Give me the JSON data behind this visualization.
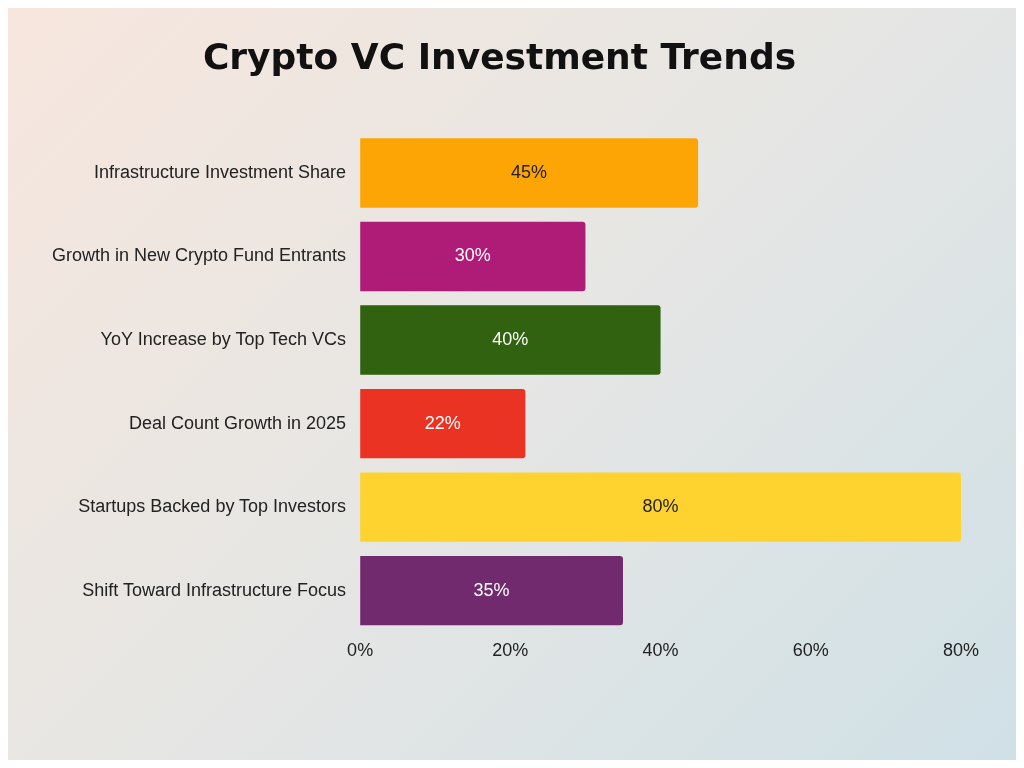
{
  "chart_data": {
    "type": "bar",
    "title": "Crypto VC Investment Trends",
    "orientation": "horizontal",
    "categories": [
      "Infrastructure Investment Share",
      "Growth in New Crypto Fund Entrants",
      "YoY Increase by Top Tech VCs",
      "Deal Count Growth in 2025",
      "Startups Backed by Top Investors",
      "Shift Toward Infrastructure Focus"
    ],
    "values": [
      45,
      30,
      40,
      22,
      80,
      35
    ],
    "colors": [
      "#fca505",
      "#ae1c78",
      "#316210",
      "#eb3323",
      "#fed330",
      "#722a6e"
    ],
    "value_labels": [
      "45%",
      "30%",
      "40%",
      "22%",
      "80%",
      "35%"
    ],
    "xlim": [
      0,
      80
    ],
    "xticks": [
      {
        "value": 0,
        "label": "0%"
      },
      {
        "value": 20,
        "label": "20%"
      },
      {
        "value": 40,
        "label": "40%"
      },
      {
        "value": 60,
        "label": "60%"
      },
      {
        "value": 80,
        "label": "80%"
      }
    ],
    "grid": false,
    "legend": false
  }
}
